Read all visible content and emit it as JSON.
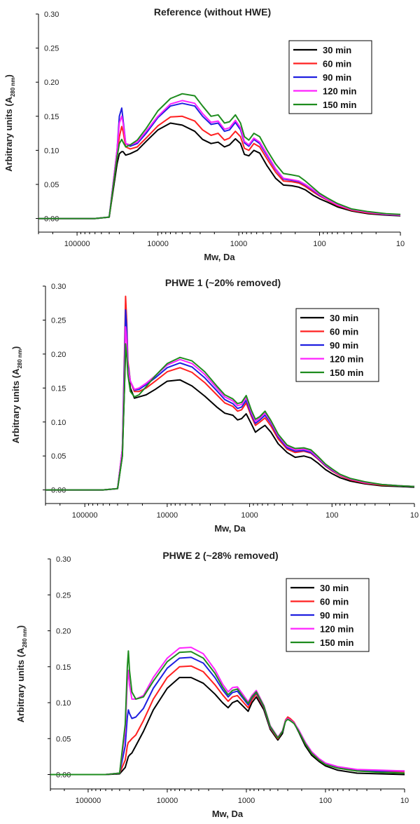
{
  "colors": {
    "series": [
      "#000000",
      "#ff2020",
      "#1f1fe0",
      "#ff22ff",
      "#1e8c1e"
    ],
    "axis": "#000000",
    "background": "#ffffff"
  },
  "chart_data": [
    {
      "type": "line",
      "title": "Reference (without HWE)",
      "xlabel": "Mw, Da",
      "ylabel_main": "Arbitrary units (A",
      "ylabel_sub": "280 nm",
      "ylabel_close": ")",
      "x_scale": "log",
      "x_reversed": true,
      "xlim": [
        300000,
        10
      ],
      "ylim": [
        -0.02,
        0.3
      ],
      "x_ticks": [
        100000,
        10000,
        1000,
        100,
        10
      ],
      "x_tick_labels": [
        "100000",
        "10000",
        "1000",
        "100",
        "10"
      ],
      "y_ticks": [
        0.0,
        0.05,
        0.1,
        0.15,
        0.2,
        0.25,
        0.3
      ],
      "y_tick_labels": [
        "0.00",
        "0.05",
        "0.10",
        "0.15",
        "0.20",
        "0.25",
        "0.30"
      ],
      "legend_position": "top-right",
      "x": [
        300000,
        60000,
        40000,
        32000,
        30000,
        28000,
        27000,
        25000,
        22000,
        18000,
        14000,
        10000,
        7000,
        5000,
        3500,
        2800,
        2200,
        1800,
        1500,
        1300,
        1100,
        950,
        850,
        750,
        650,
        550,
        450,
        350,
        280,
        220,
        180,
        150,
        120,
        100,
        80,
        60,
        40,
        25,
        15,
        10
      ],
      "series": [
        {
          "name": "30 min",
          "values": [
            0,
            0,
            0.002,
            0.08,
            0.095,
            0.098,
            0.098,
            0.093,
            0.095,
            0.1,
            0.113,
            0.13,
            0.14,
            0.137,
            0.128,
            0.116,
            0.11,
            0.112,
            0.105,
            0.108,
            0.117,
            0.11,
            0.094,
            0.092,
            0.1,
            0.096,
            0.078,
            0.059,
            0.049,
            0.048,
            0.046,
            0.042,
            0.034,
            0.029,
            0.024,
            0.017,
            0.011,
            0.007,
            0.005,
            0.004
          ]
        },
        {
          "name": "60 min",
          "values": [
            0,
            0,
            0.002,
            0.09,
            0.12,
            0.135,
            0.128,
            0.105,
            0.102,
            0.105,
            0.118,
            0.136,
            0.149,
            0.15,
            0.143,
            0.13,
            0.122,
            0.125,
            0.115,
            0.118,
            0.128,
            0.12,
            0.103,
            0.1,
            0.11,
            0.105,
            0.088,
            0.068,
            0.055,
            0.054,
            0.052,
            0.047,
            0.039,
            0.033,
            0.027,
            0.019,
            0.012,
            0.008,
            0.006,
            0.005
          ]
        },
        {
          "name": "90 min",
          "values": [
            0,
            0,
            0.002,
            0.1,
            0.15,
            0.162,
            0.145,
            0.11,
            0.106,
            0.11,
            0.125,
            0.148,
            0.165,
            0.169,
            0.165,
            0.15,
            0.138,
            0.14,
            0.128,
            0.13,
            0.141,
            0.13,
            0.111,
            0.106,
            0.116,
            0.11,
            0.093,
            0.072,
            0.058,
            0.056,
            0.054,
            0.049,
            0.041,
            0.034,
            0.028,
            0.02,
            0.013,
            0.009,
            0.006,
            0.005
          ]
        },
        {
          "name": "120 min",
          "values": [
            0,
            0,
            0.002,
            0.1,
            0.14,
            0.15,
            0.14,
            0.11,
            0.108,
            0.112,
            0.128,
            0.15,
            0.168,
            0.173,
            0.169,
            0.154,
            0.141,
            0.143,
            0.131,
            0.133,
            0.144,
            0.133,
            0.113,
            0.108,
            0.118,
            0.112,
            0.095,
            0.073,
            0.059,
            0.057,
            0.055,
            0.05,
            0.042,
            0.035,
            0.028,
            0.02,
            0.013,
            0.009,
            0.006,
            0.005
          ]
        },
        {
          "name": "150 min",
          "values": [
            0,
            0,
            0.002,
            0.09,
            0.11,
            0.116,
            0.112,
            0.105,
            0.108,
            0.115,
            0.132,
            0.158,
            0.176,
            0.183,
            0.18,
            0.165,
            0.15,
            0.152,
            0.14,
            0.142,
            0.152,
            0.14,
            0.12,
            0.115,
            0.125,
            0.12,
            0.101,
            0.08,
            0.066,
            0.064,
            0.062,
            0.055,
            0.045,
            0.037,
            0.03,
            0.022,
            0.014,
            0.01,
            0.007,
            0.006
          ]
        }
      ]
    },
    {
      "type": "line",
      "title": "PHWE 1 (~20% removed)",
      "xlabel": "Mw, Da",
      "ylabel_main": "Arbitrary units (A",
      "ylabel_sub": "280 nm",
      "ylabel_close": ")",
      "x_scale": "log",
      "x_reversed": true,
      "xlim": [
        300000,
        10
      ],
      "ylim": [
        -0.02,
        0.3
      ],
      "x_ticks": [
        100000,
        10000,
        1000,
        100,
        10
      ],
      "x_tick_labels": [
        "100000",
        "10000",
        "1000",
        "100",
        "10"
      ],
      "y_ticks": [
        0.0,
        0.05,
        0.1,
        0.15,
        0.2,
        0.25,
        0.3
      ],
      "y_tick_labels": [
        "0.00",
        "0.05",
        "0.10",
        "0.15",
        "0.20",
        "0.25",
        "0.30"
      ],
      "legend_position": "top-right",
      "x": [
        300000,
        60000,
        40000,
        35000,
        33000,
        32000,
        31000,
        30000,
        28000,
        25000,
        22000,
        18000,
        14000,
        10000,
        7000,
        5000,
        3500,
        2500,
        2000,
        1600,
        1400,
        1250,
        1100,
        950,
        850,
        750,
        650,
        550,
        450,
        350,
        280,
        220,
        180,
        150,
        120,
        100,
        80,
        60,
        40,
        25,
        15,
        10
      ],
      "series": [
        {
          "name": "30 min",
          "values": [
            0,
            0,
            0.002,
            0.05,
            0.15,
            0.205,
            0.2,
            0.18,
            0.15,
            0.135,
            0.137,
            0.14,
            0.148,
            0.16,
            0.162,
            0.153,
            0.138,
            0.122,
            0.113,
            0.11,
            0.103,
            0.105,
            0.112,
            0.097,
            0.085,
            0.09,
            0.095,
            0.085,
            0.068,
            0.055,
            0.048,
            0.05,
            0.047,
            0.04,
            0.03,
            0.024,
            0.018,
            0.013,
            0.009,
            0.006,
            0.005,
            0.004
          ]
        },
        {
          "name": "60 min",
          "values": [
            0,
            0,
            0.002,
            0.06,
            0.2,
            0.285,
            0.25,
            0.19,
            0.16,
            0.145,
            0.145,
            0.15,
            0.16,
            0.174,
            0.18,
            0.173,
            0.158,
            0.14,
            0.128,
            0.123,
            0.116,
            0.118,
            0.128,
            0.108,
            0.095,
            0.1,
            0.106,
            0.094,
            0.075,
            0.06,
            0.055,
            0.057,
            0.054,
            0.046,
            0.035,
            0.028,
            0.021,
            0.015,
            0.01,
            0.007,
            0.006,
            0.005
          ]
        },
        {
          "name": "90 min",
          "values": [
            0,
            0,
            0.002,
            0.06,
            0.19,
            0.265,
            0.24,
            0.185,
            0.16,
            0.147,
            0.148,
            0.155,
            0.165,
            0.18,
            0.187,
            0.181,
            0.165,
            0.146,
            0.133,
            0.127,
            0.12,
            0.122,
            0.132,
            0.111,
            0.098,
            0.103,
            0.11,
            0.098,
            0.078,
            0.062,
            0.057,
            0.058,
            0.055,
            0.047,
            0.036,
            0.029,
            0.022,
            0.016,
            0.011,
            0.008,
            0.006,
            0.005
          ]
        },
        {
          "name": "120 min",
          "values": [
            0,
            0,
            0.002,
            0.06,
            0.17,
            0.24,
            0.22,
            0.18,
            0.16,
            0.148,
            0.15,
            0.157,
            0.168,
            0.184,
            0.192,
            0.186,
            0.17,
            0.15,
            0.137,
            0.131,
            0.124,
            0.126,
            0.136,
            0.114,
            0.101,
            0.106,
            0.113,
            0.1,
            0.08,
            0.064,
            0.059,
            0.06,
            0.057,
            0.048,
            0.037,
            0.03,
            0.022,
            0.016,
            0.011,
            0.008,
            0.006,
            0.005
          ]
        },
        {
          "name": "150 min",
          "values": [
            0,
            0,
            0.002,
            0.05,
            0.15,
            0.215,
            0.2,
            0.17,
            0.145,
            0.137,
            0.14,
            0.152,
            0.168,
            0.186,
            0.195,
            0.19,
            0.174,
            0.153,
            0.14,
            0.134,
            0.127,
            0.129,
            0.139,
            0.117,
            0.104,
            0.108,
            0.116,
            0.102,
            0.082,
            0.066,
            0.061,
            0.062,
            0.059,
            0.05,
            0.038,
            0.031,
            0.023,
            0.017,
            0.012,
            0.008,
            0.006,
            0.005
          ]
        }
      ]
    },
    {
      "type": "line",
      "title": "PHWE 2 (~28% removed)",
      "xlabel": "Mw, Da",
      "ylabel_main": "Arbitrary units (A",
      "ylabel_sub": "280 nm",
      "ylabel_close": ")",
      "x_scale": "log",
      "x_reversed": true,
      "xlim": [
        300000,
        10
      ],
      "ylim": [
        -0.02,
        0.3
      ],
      "x_ticks": [
        100000,
        10000,
        1000,
        100,
        10
      ],
      "x_tick_labels": [
        "100000",
        "10000",
        "1000",
        "100",
        "10"
      ],
      "y_ticks": [
        0.0,
        0.05,
        0.1,
        0.15,
        0.2,
        0.25,
        0.3
      ],
      "y_tick_labels": [
        "0.00",
        "0.05",
        "0.10",
        "0.15",
        "0.20",
        "0.25",
        "0.30"
      ],
      "legend_position": "top-right",
      "x": [
        300000,
        60000,
        40000,
        34000,
        32000,
        31000,
        30000,
        28000,
        25000,
        20000,
        15000,
        10000,
        7000,
        5000,
        3500,
        2500,
        2000,
        1700,
        1500,
        1300,
        1100,
        950,
        850,
        750,
        600,
        500,
        400,
        350,
        320,
        300,
        280,
        250,
        220,
        180,
        150,
        120,
        100,
        70,
        40,
        20,
        10
      ],
      "series": [
        {
          "name": "30 min",
          "values": [
            0,
            0,
            0.001,
            0.01,
            0.02,
            0.025,
            0.027,
            0.03,
            0.04,
            0.06,
            0.09,
            0.12,
            0.135,
            0.135,
            0.127,
            0.112,
            0.1,
            0.093,
            0.1,
            0.103,
            0.095,
            0.088,
            0.1,
            0.108,
            0.09,
            0.063,
            0.048,
            0.057,
            0.075,
            0.08,
            0.077,
            0.072,
            0.06,
            0.04,
            0.027,
            0.018,
            0.012,
            0.006,
            0.002,
            0.001,
            0.0
          ]
        },
        {
          "name": "60 min",
          "values": [
            0,
            0,
            0.002,
            0.02,
            0.04,
            0.045,
            0.046,
            0.05,
            0.055,
            0.075,
            0.105,
            0.135,
            0.15,
            0.151,
            0.143,
            0.125,
            0.111,
            0.102,
            0.108,
            0.11,
            0.101,
            0.093,
            0.104,
            0.112,
            0.093,
            0.065,
            0.05,
            0.06,
            0.076,
            0.08,
            0.078,
            0.073,
            0.062,
            0.043,
            0.03,
            0.02,
            0.014,
            0.009,
            0.005,
            0.004,
            0.004
          ]
        },
        {
          "name": "90 min",
          "values": [
            0,
            0,
            0.002,
            0.04,
            0.08,
            0.09,
            0.085,
            0.078,
            0.08,
            0.092,
            0.12,
            0.148,
            0.162,
            0.163,
            0.155,
            0.135,
            0.118,
            0.108,
            0.114,
            0.116,
            0.106,
            0.097,
            0.107,
            0.114,
            0.094,
            0.066,
            0.051,
            0.06,
            0.075,
            0.078,
            0.076,
            0.072,
            0.062,
            0.044,
            0.031,
            0.021,
            0.015,
            0.01,
            0.006,
            0.005,
            0.005
          ]
        },
        {
          "name": "120 min",
          "values": [
            0,
            0,
            0.002,
            0.06,
            0.13,
            0.145,
            0.125,
            0.105,
            0.105,
            0.11,
            0.135,
            0.162,
            0.176,
            0.177,
            0.168,
            0.146,
            0.126,
            0.115,
            0.121,
            0.122,
            0.111,
            0.101,
            0.11,
            0.117,
            0.096,
            0.068,
            0.052,
            0.061,
            0.075,
            0.078,
            0.076,
            0.072,
            0.063,
            0.045,
            0.032,
            0.022,
            0.016,
            0.011,
            0.007,
            0.006,
            0.005
          ]
        },
        {
          "name": "150 min",
          "values": [
            0,
            0,
            0.002,
            0.07,
            0.15,
            0.172,
            0.145,
            0.115,
            0.105,
            0.108,
            0.13,
            0.157,
            0.17,
            0.171,
            0.162,
            0.141,
            0.122,
            0.111,
            0.117,
            0.119,
            0.108,
            0.099,
            0.108,
            0.115,
            0.095,
            0.067,
            0.051,
            0.06,
            0.074,
            0.077,
            0.075,
            0.071,
            0.061,
            0.043,
            0.03,
            0.02,
            0.014,
            0.009,
            0.005,
            0.003,
            0.002
          ]
        }
      ]
    }
  ]
}
